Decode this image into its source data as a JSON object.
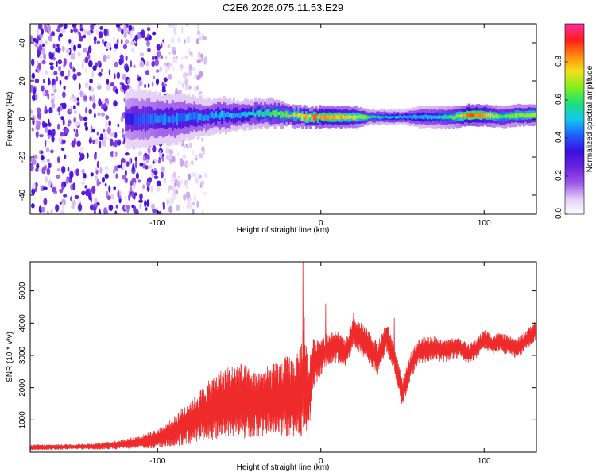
{
  "title": "C2E6.2026.075.11.53.E29",
  "colors": {
    "snr_line": "#ee2a2a",
    "colormap": [
      "#ffffff",
      "#e3cdf5",
      "#9a55e8",
      "#6a22dd",
      "#3a0fe0",
      "#1e60ff",
      "#12c8f0",
      "#1ee07a",
      "#7ef01e",
      "#f2e21a",
      "#ff8a10",
      "#ff1d1d",
      "#ff2ea0"
    ]
  },
  "chart_data": [
    {
      "type": "heatmap",
      "title": "",
      "xlabel": "Height of straight line (km)",
      "ylabel": "Frequency (Hz)",
      "xlim": [
        -178,
        132
      ],
      "ylim": [
        -50,
        50
      ],
      "xticks": [
        -100,
        0,
        100
      ],
      "xtick_labels": [
        "-100",
        "0",
        "100"
      ],
      "yticks": [
        -40,
        -20,
        0,
        20,
        40
      ],
      "ytick_labels": [
        "-40",
        "-20",
        "0",
        "20",
        "40"
      ],
      "colorbar": {
        "label": "Normalized spectral amplitude",
        "range": [
          0.0,
          1.0
        ],
        "ticks": [
          0.0,
          0.2,
          0.4,
          0.6,
          0.8
        ],
        "tick_labels": [
          "0.0",
          "0.2",
          "0.4",
          "0.6",
          "0.8"
        ]
      },
      "ridge": {
        "x": [
          -120,
          -110,
          -100,
          -90,
          -80,
          -70,
          -60,
          -50,
          -40,
          -30,
          -20,
          -10,
          0,
          10,
          20,
          30,
          40,
          50,
          60,
          70,
          80,
          90,
          100,
          110,
          120,
          132
        ],
        "center_freq_hz": [
          0,
          0,
          0,
          0,
          1,
          1,
          2,
          2,
          3,
          3,
          2,
          1,
          1,
          1,
          1,
          1,
          1,
          1,
          1,
          1,
          1,
          2,
          2,
          1,
          2,
          2
        ],
        "half_width_hz": [
          8,
          8,
          7,
          7,
          6,
          5,
          5,
          4,
          4,
          4,
          3,
          3,
          3,
          3,
          3,
          2,
          2,
          2,
          3,
          3,
          3,
          3,
          3,
          3,
          3,
          3
        ],
        "amplitude": [
          0.35,
          0.4,
          0.45,
          0.45,
          0.45,
          0.45,
          0.5,
          0.5,
          0.55,
          0.6,
          0.7,
          0.78,
          0.88,
          0.85,
          0.8,
          0.62,
          0.55,
          0.52,
          0.5,
          0.55,
          0.65,
          0.95,
          0.85,
          0.65,
          0.72,
          0.75
        ]
      },
      "noise_region": {
        "x_range": [
          -178,
          -95
        ],
        "amplitude": [
          0.05,
          0.35
        ]
      }
    },
    {
      "type": "line",
      "title": "",
      "xlabel": "Height of straight line (km)",
      "ylabel": "SNR (10 * v/v)",
      "xlim": [
        -178,
        132
      ],
      "ylim": [
        0,
        5900
      ],
      "xticks": [
        -100,
        0,
        100
      ],
      "xtick_labels": [
        "-100",
        "0",
        "100"
      ],
      "yticks": [
        1000,
        2000,
        3000,
        4000,
        5000
      ],
      "ytick_labels": [
        "1000",
        "2000",
        "3000",
        "4000",
        "5000"
      ],
      "series": [
        {
          "name": "SNR",
          "x": [
            -178,
            -170,
            -160,
            -150,
            -140,
            -130,
            -120,
            -110,
            -100,
            -95,
            -90,
            -85,
            -80,
            -75,
            -70,
            -65,
            -60,
            -55,
            -50,
            -45,
            -40,
            -35,
            -30,
            -25,
            -20,
            -15,
            -12,
            -10,
            -8,
            -5,
            0,
            5,
            10,
            15,
            20,
            25,
            30,
            35,
            40,
            45,
            50,
            55,
            60,
            65,
            70,
            75,
            80,
            85,
            90,
            95,
            100,
            105,
            110,
            115,
            120,
            125,
            132
          ],
          "values": [
            150,
            150,
            160,
            170,
            180,
            200,
            260,
            320,
            420,
            520,
            650,
            800,
            950,
            1100,
            1250,
            1400,
            1500,
            1600,
            1600,
            1550,
            1500,
            1550,
            1600,
            1650,
            1700,
            1750,
            2000,
            2600,
            1500,
            2700,
            3000,
            3200,
            3300,
            3000,
            3700,
            3500,
            3200,
            2900,
            3600,
            2900,
            1800,
            2700,
            3100,
            3200,
            3250,
            3100,
            3200,
            3250,
            3050,
            3200,
            3500,
            3350,
            3400,
            3300,
            3200,
            3450,
            3800
          ],
          "amplitude": [
            80,
            80,
            80,
            80,
            90,
            120,
            150,
            200,
            300,
            350,
            450,
            600,
            700,
            800,
            900,
            1000,
            1100,
            1100,
            1200,
            1100,
            1000,
            1100,
            1100,
            1200,
            1300,
            1200,
            1500,
            1800,
            1300,
            800,
            600,
            500,
            500,
            450,
            450,
            500,
            500,
            500,
            450,
            450,
            400,
            400,
            400,
            400,
            350,
            350,
            350,
            300,
            300,
            300,
            300,
            300,
            300,
            300,
            300,
            300,
            300
          ]
        }
      ],
      "peaks": [
        {
          "x": -11,
          "y": 5900
        },
        {
          "x": 3,
          "y": 4600
        },
        {
          "x": 20,
          "y": 4300
        },
        {
          "x": 45,
          "y": 4150
        }
      ]
    }
  ]
}
